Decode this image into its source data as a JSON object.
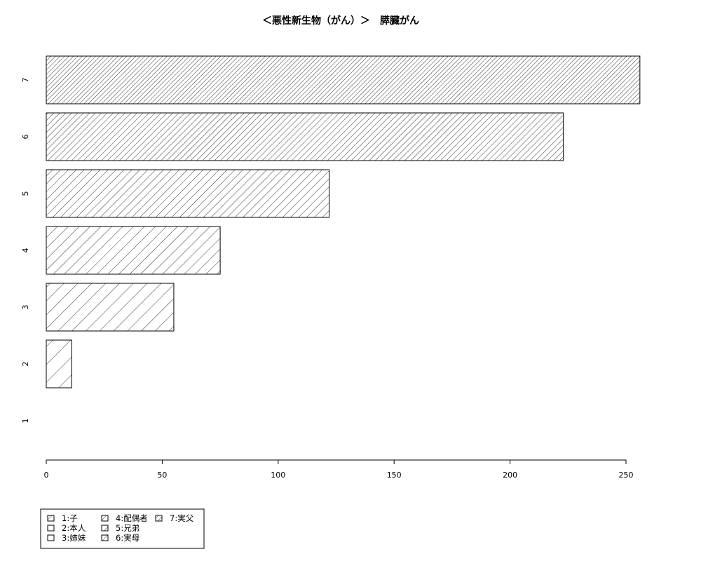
{
  "chart_data": {
    "type": "bar",
    "orientation": "horizontal",
    "title": "＜悪性新生物（がん）＞　膵臓がん",
    "categories": [
      "1",
      "2",
      "3",
      "4",
      "5",
      "6",
      "7"
    ],
    "values": [
      0,
      11,
      55,
      75,
      122,
      223,
      256
    ],
    "xlim": [
      0,
      256
    ],
    "x_ticks": [
      0,
      50,
      100,
      150,
      200,
      250
    ],
    "fill": "hatched",
    "grid": false,
    "legend_position": "bottom-left",
    "legend": [
      "1:子",
      "2:本人",
      "3:姉妹",
      "4:配偶者",
      "5:兄弟",
      "6:実母",
      "7:実父"
    ]
  }
}
